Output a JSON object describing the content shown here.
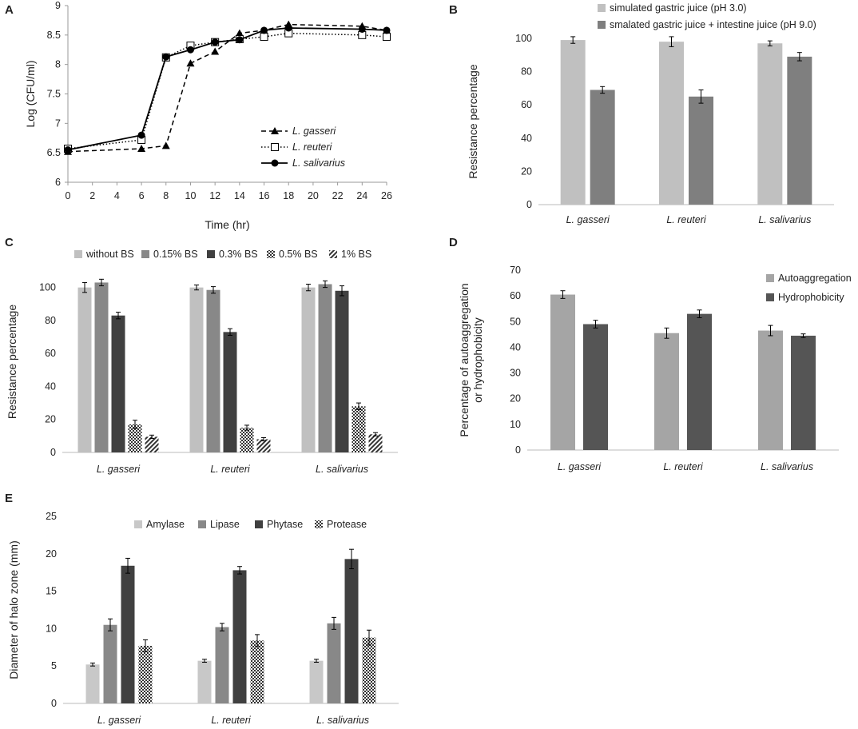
{
  "panels": {
    "A": "A",
    "B": "B",
    "C": "C",
    "D": "D",
    "E": "E"
  },
  "chart_data": [
    {
      "id": "A",
      "type": "line",
      "title": "",
      "xlabel": "Time (hr)",
      "ylabel": "Log (CFU/ml)",
      "xlim": [
        0,
        26
      ],
      "ylim": [
        6,
        9
      ],
      "xticks": [
        "0",
        "2",
        "4",
        "6",
        "8",
        "10",
        "12",
        "14",
        "16",
        "18",
        "20",
        "22",
        "24",
        "26"
      ],
      "yticks": [
        "6",
        "6.5",
        "7",
        "7.5",
        "8",
        "8.5",
        "9"
      ],
      "series": [
        {
          "name": "L. gasseri",
          "marker": "triangle",
          "line": "dashed",
          "x": [
            0,
            6,
            8,
            10,
            12,
            14,
            16,
            18,
            24,
            26
          ],
          "y": [
            6.52,
            6.57,
            6.62,
            8.02,
            8.22,
            8.53,
            8.58,
            8.68,
            8.65,
            8.58
          ]
        },
        {
          "name": "L. reuteri",
          "marker": "open-square",
          "line": "dotted",
          "x": [
            0,
            6,
            8,
            10,
            12,
            14,
            16,
            18,
            24,
            26
          ],
          "y": [
            6.57,
            6.72,
            8.12,
            8.32,
            8.38,
            8.43,
            8.47,
            8.53,
            8.5,
            8.47
          ]
        },
        {
          "name": "L. salivarius",
          "marker": "circle",
          "line": "solid",
          "x": [
            0,
            6,
            8,
            10,
            12,
            14,
            16,
            18,
            24,
            26
          ],
          "y": [
            6.55,
            6.8,
            8.13,
            8.25,
            8.38,
            8.42,
            8.58,
            8.62,
            8.6,
            8.58
          ]
        }
      ]
    },
    {
      "id": "B",
      "type": "bar",
      "ylabel": "Resistance percentage",
      "ylim": [
        0,
        100
      ],
      "yticks": [
        "0",
        "20",
        "40",
        "60",
        "80",
        "100"
      ],
      "categories": [
        "L. gasseri",
        "L. reuteri",
        "L. salivarius"
      ],
      "series": [
        {
          "name": "simulated gastric juice (pH 3.0)",
          "color": "#c0c0c0",
          "values": [
            99,
            98,
            97
          ],
          "errors": [
            2,
            3,
            1.5
          ]
        },
        {
          "name": "smalated gastric juice + intestine juice (pH 9.0)",
          "color": "#7f7f7f",
          "values": [
            69,
            65,
            89
          ],
          "errors": [
            2,
            4,
            2.5
          ]
        }
      ]
    },
    {
      "id": "C",
      "type": "bar",
      "ylabel": "Resistance percentage",
      "ylim": [
        0,
        110
      ],
      "yticks": [
        "0",
        "20",
        "40",
        "60",
        "80",
        "100"
      ],
      "categories": [
        "L. gasseri",
        "L. reuteri",
        "L. salivarius"
      ],
      "series": [
        {
          "name": "without BS",
          "color": "#c0c0c0",
          "pattern": "none",
          "values": [
            100,
            100,
            100
          ],
          "errors": [
            3,
            1.5,
            2
          ]
        },
        {
          "name": "0.15% BS",
          "color": "#888888",
          "pattern": "none",
          "values": [
            103,
            98.5,
            102
          ],
          "errors": [
            2,
            2,
            2
          ]
        },
        {
          "name": "0.3% BS",
          "color": "#404040",
          "pattern": "none",
          "values": [
            83,
            73,
            98
          ],
          "errors": [
            2,
            2,
            3
          ]
        },
        {
          "name": "0.5% BS",
          "color": "#555555",
          "pattern": "dots",
          "values": [
            17,
            15,
            28
          ],
          "errors": [
            2.5,
            1.5,
            2
          ]
        },
        {
          "name": "1% BS",
          "color": "#555555",
          "pattern": "diag",
          "values": [
            9.5,
            8,
            11
          ],
          "errors": [
            1,
            1,
            1
          ]
        }
      ]
    },
    {
      "id": "D",
      "type": "bar",
      "ylabel": "Percentage of autoaggregation",
      "ylabel2": "or hydrophobicity",
      "ylim": [
        0,
        70
      ],
      "yticks": [
        "0",
        "10",
        "20",
        "30",
        "40",
        "50",
        "60",
        "70"
      ],
      "categories": [
        "L. gasseri",
        "L. reuteri",
        "L. salivarius"
      ],
      "series": [
        {
          "name": "Autoaggregation",
          "color": "#a5a5a5",
          "values": [
            60.5,
            45.5,
            46.5
          ],
          "errors": [
            1.5,
            2,
            2
          ]
        },
        {
          "name": "Hydrophobicity",
          "color": "#555555",
          "values": [
            49,
            53,
            44.5
          ],
          "errors": [
            1.5,
            1.5,
            0.7
          ]
        }
      ]
    },
    {
      "id": "E",
      "type": "bar",
      "ylabel": "Diameter of halo zone (mm)",
      "ylim": [
        0,
        25
      ],
      "yticks": [
        "0",
        "5",
        "10",
        "15",
        "20",
        "25"
      ],
      "categories": [
        "L. gasseri",
        "L. reuteri",
        "L. salivarius"
      ],
      "series": [
        {
          "name": "Amylase",
          "color": "#c8c8c8",
          "pattern": "none",
          "values": [
            5.2,
            5.7,
            5.7
          ],
          "errors": [
            0.2,
            0.2,
            0.2
          ]
        },
        {
          "name": "Lipase",
          "color": "#888888",
          "pattern": "none",
          "values": [
            10.5,
            10.2,
            10.7
          ],
          "errors": [
            0.8,
            0.5,
            0.8
          ]
        },
        {
          "name": "Phytase",
          "color": "#404040",
          "pattern": "none",
          "values": [
            18.4,
            17.8,
            19.3
          ],
          "errors": [
            1,
            0.5,
            1.3
          ]
        },
        {
          "name": "Protease",
          "color": "#555555",
          "pattern": "dots",
          "values": [
            7.7,
            8.4,
            8.8
          ],
          "errors": [
            0.8,
            0.8,
            1
          ]
        }
      ]
    }
  ]
}
